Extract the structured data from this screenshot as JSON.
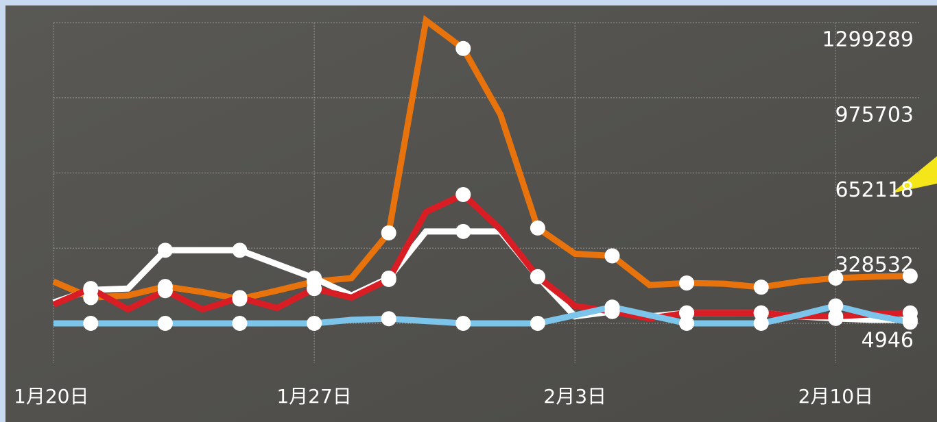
{
  "chart_data": {
    "type": "line",
    "categories": [
      "1月20日",
      null,
      null,
      null,
      null,
      null,
      null,
      "1月27日",
      null,
      null,
      null,
      null,
      null,
      null,
      "2月3日",
      null,
      null,
      null,
      null,
      null,
      null,
      "2月10日",
      null,
      null
    ],
    "series": [
      {
        "color": "#e8730c",
        "values": [
          184700,
          115800,
          124800,
          163700,
          139700,
          109800,
          145800,
          184700,
          199700,
          394400,
          1308000,
          1188000,
          903700,
          415400,
          304500,
          295500,
          169700,
          178700,
          175700,
          160700,
          184700,
          199700,
          205700,
          208700
        ]
      },
      {
        "color": "#ffffff",
        "values": [
          94800,
          148800,
          154800,
          319500,
          319500,
          319500,
          259600,
          199700,
          124800,
          199700,
          400400,
          400400,
          400400,
          205700,
          34900,
          55900,
          34900,
          49900,
          49900,
          49900,
          34900,
          25900,
          19900,
          19900
        ]
      },
      {
        "color": "#d81e24",
        "values": [
          85800,
          154800,
          64900,
          145800,
          64900,
          115800,
          70900,
          154800,
          115800,
          193700,
          484300,
          559200,
          409400,
          205700,
          79800,
          55900,
          25900,
          49900,
          49900,
          49900,
          34900,
          34900,
          43900,
          49900
        ]
      },
      {
        "color": "#7cc4ea",
        "values": [
          4946,
          4946,
          4946,
          4946,
          4946,
          4946,
          4946,
          4946,
          20000,
          25000,
          15000,
          4946,
          4946,
          4946,
          40000,
          75000,
          40000,
          4946,
          4946,
          4946,
          40000,
          80000,
          40000,
          10000
        ]
      }
    ],
    "ylim": [
      4946,
      1299289
    ],
    "yticks": [
      4946,
      328532,
      652118,
      975703,
      1299289
    ],
    "grid": true
  }
}
